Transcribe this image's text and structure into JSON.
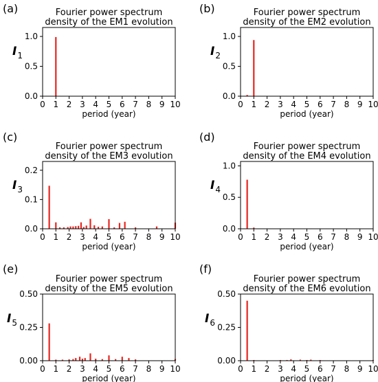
{
  "colors": {
    "bar": "#e8251f",
    "axis": "#000000"
  },
  "chart_data": [
    {
      "type": "bar",
      "panel": "(a)",
      "title": [
        "Fourier power spectrum",
        "density of the EM1 evolution"
      ],
      "ylabel": {
        "main": "I",
        "sub": "1"
      },
      "xlabel": "period (year)",
      "xlim": [
        0,
        10
      ],
      "ylim": [
        0,
        1.15
      ],
      "xticks": [
        0,
        1,
        2,
        3,
        4,
        5,
        6,
        7,
        8,
        9,
        10
      ],
      "yticks": [
        0.0,
        0.5,
        1.0
      ],
      "ytick_labels": [
        "0.0",
        "0.5",
        "1.0"
      ],
      "x": [
        1.0
      ],
      "values": [
        0.99
      ]
    },
    {
      "type": "bar",
      "panel": "(b)",
      "title": [
        "Fourier power spectrum",
        "density of the EM2 evolution"
      ],
      "ylabel": {
        "main": "I",
        "sub": "2"
      },
      "xlabel": "period (year)",
      "xlim": [
        0,
        10
      ],
      "ylim": [
        0,
        1.15
      ],
      "xticks": [
        0,
        1,
        2,
        3,
        4,
        5,
        6,
        7,
        8,
        9,
        10
      ],
      "yticks": [
        0.0,
        0.5,
        1.0
      ],
      "ytick_labels": [
        "0.0",
        "0.5",
        "1.0"
      ],
      "x": [
        0.5,
        1.0
      ],
      "values": [
        0.02,
        0.94
      ]
    },
    {
      "type": "bar",
      "panel": "(c)",
      "title": [
        "Fourier power spectrum",
        "density of the EM3 evolution"
      ],
      "ylabel": {
        "main": "I",
        "sub": "3"
      },
      "xlabel": "period (year)",
      "xlim": [
        0,
        10
      ],
      "ylim": [
        0,
        0.23
      ],
      "xticks": [
        0,
        1,
        2,
        3,
        4,
        5,
        6,
        7,
        8,
        9,
        10
      ],
      "yticks": [
        0.0,
        0.1,
        0.2
      ],
      "ytick_labels": [
        "0.0",
        "0.1",
        "0.2"
      ],
      "x": [
        0.5,
        1.0,
        1.3,
        1.6,
        1.9,
        2.1,
        2.3,
        2.5,
        2.7,
        2.9,
        3.1,
        3.3,
        3.6,
        3.9,
        4.2,
        4.5,
        5.0,
        5.4,
        5.8,
        6.2,
        7.0,
        8.6,
        10.0
      ],
      "values": [
        0.147,
        0.022,
        0.005,
        0.005,
        0.006,
        0.008,
        0.008,
        0.009,
        0.01,
        0.022,
        0.006,
        0.011,
        0.034,
        0.012,
        0.007,
        0.008,
        0.033,
        0.005,
        0.02,
        0.024,
        0.005,
        0.008,
        0.021
      ]
    },
    {
      "type": "bar",
      "panel": "(d)",
      "title": [
        "Fourier power spectrum",
        "density of the EM4 evolution"
      ],
      "ylabel": {
        "main": "I",
        "sub": "4"
      },
      "xlabel": "period (year)",
      "xlim": [
        0,
        10
      ],
      "ylim": [
        0,
        1.07
      ],
      "xticks": [
        0,
        1,
        2,
        3,
        4,
        5,
        6,
        7,
        8,
        9,
        10
      ],
      "yticks": [
        0.0,
        0.5,
        1.0
      ],
      "ytick_labels": [
        "0.0",
        "0.5",
        "1.0"
      ],
      "x": [
        0.5,
        1.0
      ],
      "values": [
        0.78,
        0.02
      ]
    },
    {
      "type": "bar",
      "panel": "(e)",
      "title": [
        "Fourier power spectrum",
        "density of the EM5 evolution"
      ],
      "ylabel": {
        "main": "I",
        "sub": "5"
      },
      "xlabel": "period (year)",
      "xlim": [
        0,
        10
      ],
      "ylim": [
        0,
        0.5
      ],
      "xticks": [
        0,
        1,
        2,
        3,
        4,
        5,
        6,
        7,
        8,
        9,
        10
      ],
      "yticks": [
        0.0,
        0.25,
        0.5
      ],
      "ytick_labels": [
        "0.00",
        "0.25",
        "0.50"
      ],
      "x": [
        0.5,
        1.0,
        1.5,
        2.0,
        2.3,
        2.5,
        2.8,
        3.0,
        3.2,
        3.6,
        4.0,
        4.5,
        5.0,
        5.5,
        6.0,
        6.5,
        7.0,
        10.0
      ],
      "values": [
        0.28,
        0.008,
        0.008,
        0.01,
        0.012,
        0.02,
        0.03,
        0.015,
        0.02,
        0.055,
        0.015,
        0.012,
        0.04,
        0.012,
        0.03,
        0.02,
        0.01,
        0.012
      ]
    },
    {
      "type": "bar",
      "panel": "(f)",
      "title": [
        "Fourier power spectrum",
        "density of the EM6 evolution"
      ],
      "ylabel": {
        "main": "I",
        "sub": "6"
      },
      "xlabel": "period (year)",
      "xlim": [
        0,
        10
      ],
      "ylim": [
        0,
        0.5
      ],
      "xticks": [
        0,
        1,
        2,
        3,
        4,
        5,
        6,
        7,
        8,
        9,
        10
      ],
      "yticks": [
        0.0,
        0.25,
        0.5
      ],
      "ytick_labels": [
        "0.00",
        "0.25",
        "0.50"
      ],
      "x": [
        0.5,
        1.0,
        3.0,
        3.5,
        3.8,
        4.5,
        5.0,
        5.3,
        6.0,
        10.0
      ],
      "values": [
        0.45,
        0.005,
        0.005,
        0.005,
        0.01,
        0.008,
        0.005,
        0.008,
        0.005,
        0.005
      ]
    }
  ]
}
